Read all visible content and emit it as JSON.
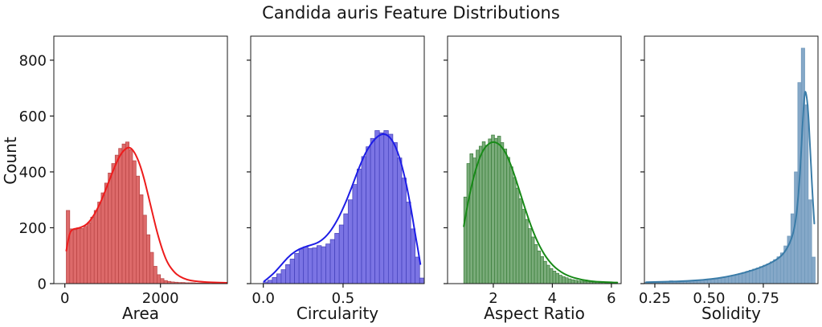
{
  "title": "Candida auris Feature Distributions",
  "ylabel": "Count",
  "y_axis": {
    "ticks": [
      0,
      200,
      400,
      600,
      800
    ],
    "tick_labels": [
      "0",
      "200",
      "400",
      "600",
      "800"
    ],
    "ylim": [
      0,
      886
    ]
  },
  "chart_data": [
    {
      "type": "bar",
      "subtype": "histogram_with_kde",
      "feature": "Area",
      "xlabel": "Area",
      "color_fill": "#dd6a6a",
      "color_edge": "#b84444",
      "color_line": "#ed1c1c",
      "xlim": [
        -230,
        3400
      ],
      "xticks": [
        0,
        2000
      ],
      "xtick_labels": [
        "0",
        "2000"
      ],
      "bin_start": 30,
      "bin_width": 73,
      "counts": [
        262,
        196,
        193,
        200,
        198,
        205,
        218,
        238,
        262,
        292,
        325,
        360,
        396,
        430,
        460,
        484,
        500,
        507,
        480,
        440,
        385,
        318,
        245,
        175,
        112,
        62,
        32,
        18,
        11,
        8,
        6,
        5,
        4,
        4,
        3,
        3,
        3,
        2,
        2,
        2,
        2,
        1,
        1,
        1,
        1,
        1
      ],
      "kde": [
        [
          30,
          118
        ],
        [
          90,
          178
        ],
        [
          160,
          196
        ],
        [
          260,
          197
        ],
        [
          360,
          203
        ],
        [
          460,
          212
        ],
        [
          560,
          232
        ],
        [
          680,
          266
        ],
        [
          800,
          312
        ],
        [
          920,
          365
        ],
        [
          1040,
          418
        ],
        [
          1160,
          462
        ],
        [
          1280,
          486
        ],
        [
          1370,
          488
        ],
        [
          1460,
          470
        ],
        [
          1560,
          432
        ],
        [
          1660,
          375
        ],
        [
          1760,
          305
        ],
        [
          1860,
          232
        ],
        [
          1960,
          165
        ],
        [
          2060,
          110
        ],
        [
          2160,
          70
        ],
        [
          2280,
          42
        ],
        [
          2400,
          25
        ],
        [
          2550,
          14
        ],
        [
          2700,
          9
        ],
        [
          2900,
          6
        ],
        [
          3100,
          4
        ],
        [
          3388,
          3
        ]
      ]
    },
    {
      "type": "bar",
      "subtype": "histogram_with_kde",
      "feature": "Circularity",
      "xlabel": "Circularity",
      "color_fill": "#7b74e4",
      "color_edge": "#4340bb",
      "color_line": "#1d1de6",
      "xlim": [
        -0.079,
        1.009
      ],
      "xticks": [
        0.0,
        0.5
      ],
      "xtick_labels": [
        "0.0",
        "0.5"
      ],
      "bin_start": 0.0,
      "bin_width": 0.028,
      "counts": [
        6,
        12,
        22,
        35,
        50,
        68,
        88,
        108,
        124,
        132,
        126,
        128,
        136,
        132,
        142,
        158,
        180,
        210,
        250,
        300,
        355,
        410,
        455,
        490,
        520,
        548,
        540,
        548,
        535,
        505,
        450,
        378,
        292,
        196,
        95,
        20
      ],
      "kde": [
        [
          0.005,
          8
        ],
        [
          0.05,
          28
        ],
        [
          0.1,
          58
        ],
        [
          0.15,
          92
        ],
        [
          0.2,
          116
        ],
        [
          0.25,
          130
        ],
        [
          0.3,
          138
        ],
        [
          0.35,
          148
        ],
        [
          0.4,
          172
        ],
        [
          0.45,
          212
        ],
        [
          0.5,
          268
        ],
        [
          0.55,
          338
        ],
        [
          0.6,
          415
        ],
        [
          0.64,
          468
        ],
        [
          0.68,
          505
        ],
        [
          0.72,
          530
        ],
        [
          0.76,
          538
        ],
        [
          0.8,
          522
        ],
        [
          0.84,
          478
        ],
        [
          0.88,
          400
        ],
        [
          0.92,
          290
        ],
        [
          0.95,
          185
        ],
        [
          0.97,
          120
        ],
        [
          0.985,
          70
        ]
      ]
    },
    {
      "type": "bar",
      "subtype": "histogram_with_kde",
      "feature": "Aspect Ratio",
      "xlabel": "Aspect Ratio",
      "color_fill": "#7aac7a",
      "color_edge": "#3a7d3a",
      "color_line": "#188a18",
      "xlim": [
        0.45,
        6.33
      ],
      "xticks": [
        2,
        4,
        6
      ],
      "xtick_labels": [
        "2",
        "4",
        "6"
      ],
      "bin_start": 1.0,
      "bin_width": 0.104,
      "counts": [
        310,
        430,
        465,
        450,
        478,
        492,
        508,
        495,
        518,
        532,
        520,
        528,
        505,
        482,
        452,
        418,
        380,
        342,
        304,
        266,
        230,
        197,
        167,
        140,
        117,
        97,
        80,
        66,
        54,
        45,
        37,
        30,
        25,
        21,
        17,
        14,
        12,
        10,
        9,
        8,
        7,
        6,
        5,
        5,
        4,
        4,
        3,
        3,
        3,
        2
      ],
      "kde": [
        [
          1.0,
          205
        ],
        [
          1.1,
          268
        ],
        [
          1.25,
          345
        ],
        [
          1.4,
          408
        ],
        [
          1.55,
          455
        ],
        [
          1.7,
          486
        ],
        [
          1.85,
          502
        ],
        [
          2.0,
          508
        ],
        [
          2.15,
          503
        ],
        [
          2.3,
          488
        ],
        [
          2.45,
          462
        ],
        [
          2.6,
          424
        ],
        [
          2.75,
          378
        ],
        [
          2.9,
          328
        ],
        [
          3.05,
          277
        ],
        [
          3.2,
          229
        ],
        [
          3.35,
          186
        ],
        [
          3.5,
          149
        ],
        [
          3.65,
          118
        ],
        [
          3.8,
          93
        ],
        [
          3.95,
          73
        ],
        [
          4.1,
          57
        ],
        [
          4.3,
          41
        ],
        [
          4.5,
          30
        ],
        [
          4.7,
          22
        ],
        [
          4.9,
          16
        ],
        [
          5.1,
          12
        ],
        [
          5.3,
          9
        ],
        [
          5.5,
          7
        ],
        [
          5.7,
          6
        ],
        [
          5.9,
          5
        ],
        [
          6.1,
          4
        ],
        [
          6.2,
          4
        ]
      ]
    },
    {
      "type": "bar",
      "subtype": "histogram_with_kde",
      "feature": "Solidity",
      "xlabel": "Solidity",
      "color_fill": "#85a8c8",
      "color_edge": "#6d97ba",
      "color_line": "#3a7ca8",
      "xlim": [
        0.202,
        1.002
      ],
      "xticks": [
        0.25,
        0.5,
        0.75
      ],
      "xtick_labels": [
        "0.25",
        "0.50",
        "0.75"
      ],
      "bin_start": 0.205,
      "bin_width": 0.016,
      "counts": [
        4,
        3,
        4,
        4,
        5,
        4,
        5,
        10,
        6,
        5,
        6,
        7,
        7,
        8,
        9,
        10,
        11,
        12,
        14,
        15,
        17,
        19,
        21,
        24,
        27,
        30,
        33,
        36,
        40,
        44,
        48,
        52,
        56,
        61,
        66,
        71,
        78,
        86,
        96,
        110,
        135,
        170,
        250,
        400,
        720,
        843,
        640,
        300,
        95
      ],
      "kde": [
        [
          0.21,
          5
        ],
        [
          0.3,
          7
        ],
        [
          0.4,
          9
        ],
        [
          0.5,
          15
        ],
        [
          0.58,
          24
        ],
        [
          0.66,
          38
        ],
        [
          0.74,
          58
        ],
        [
          0.8,
          80
        ],
        [
          0.84,
          103
        ],
        [
          0.87,
          140
        ],
        [
          0.89,
          185
        ],
        [
          0.905,
          255
        ],
        [
          0.92,
          400
        ],
        [
          0.93,
          560
        ],
        [
          0.94,
          680
        ],
        [
          0.945,
          692
        ],
        [
          0.955,
          640
        ],
        [
          0.965,
          500
        ],
        [
          0.975,
          340
        ],
        [
          0.985,
          215
        ]
      ]
    }
  ]
}
